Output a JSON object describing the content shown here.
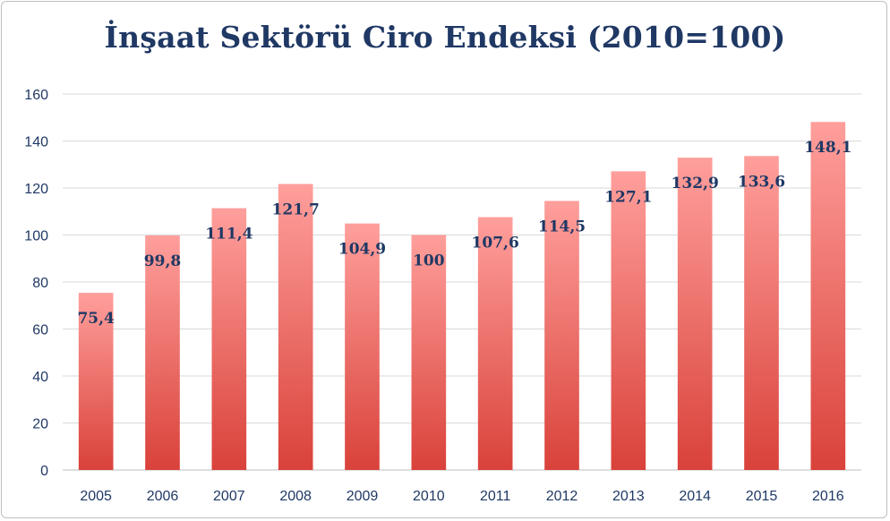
{
  "chart_data": {
    "type": "bar",
    "title": "İnşaat Sektörü Ciro Endeksi (2010=100)",
    "xlabel": "",
    "ylabel": "",
    "categories": [
      "2005",
      "2006",
      "2007",
      "2008",
      "2009",
      "2010",
      "2011",
      "2012",
      "2013",
      "2014",
      "2015",
      "2016"
    ],
    "values": [
      75.4,
      99.8,
      111.4,
      121.7,
      104.9,
      100,
      107.6,
      114.5,
      127.1,
      132.9,
      133.6,
      148.1
    ],
    "data_labels": [
      "75,4",
      "99,8",
      "111,4",
      "121,7",
      "104,9",
      "100",
      "107,6",
      "114,5",
      "127,1",
      "132,9",
      "133,6",
      "148,1"
    ],
    "ylim": [
      0,
      160
    ],
    "yticks": [
      0,
      20,
      40,
      60,
      80,
      100,
      120,
      140,
      160
    ],
    "grid": true,
    "legend": "none",
    "colors": {
      "bar_top": "#ff9f9c",
      "bar_bottom": "#d9423a",
      "text": "#1f3864",
      "grid": "#d9d9d9"
    }
  }
}
